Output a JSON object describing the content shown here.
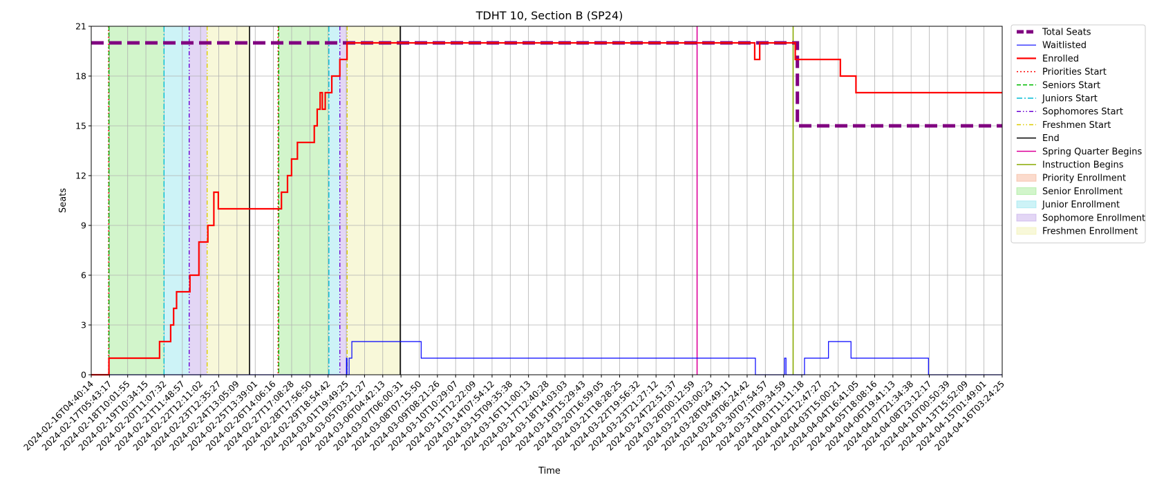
{
  "chart_data": {
    "type": "line",
    "title": "TDHT 10, Section B (SP24)",
    "xlabel": "Time",
    "ylabel": "Seats",
    "xlim": [
      "2024-02-16T04:40:14",
      "2024-04-16T03:24:25"
    ],
    "ylim": [
      0,
      21
    ],
    "y_ticks": [
      0,
      3,
      6,
      9,
      12,
      15,
      18,
      21
    ],
    "x_ticks": [
      "2024-02-16T04:40:14",
      "2024-02-17T05:43:17",
      "2024-02-18T10:01:55",
      "2024-02-19T10:34:15",
      "2024-02-20T11:07:32",
      "2024-02-21T11:48:57",
      "2024-02-22T12:11:02",
      "2024-02-23T12:35:27",
      "2024-02-24T13:05:09",
      "2024-02-25T13:39:01",
      "2024-02-26T14:06:16",
      "2024-02-27T17:08:28",
      "2024-02-28T17:56:50",
      "2024-02-29T18:54:42",
      "2024-03-01T19:49:25",
      "2024-03-05T03:21:27",
      "2024-03-06T04:42:13",
      "2024-03-07T06:00:31",
      "2024-03-08T07:15:50",
      "2024-03-09T08:21:26",
      "2024-03-10T10:29:07",
      "2024-03-11T12:22:09",
      "2024-03-14T07:54:12",
      "2024-03-15T09:35:38",
      "2024-03-16T11:00:13",
      "2024-03-17T12:40:28",
      "2024-03-18T14:03:03",
      "2024-03-19T15:29:43",
      "2024-03-20T16:59:05",
      "2024-03-21T18:28:25",
      "2024-03-22T19:56:32",
      "2024-03-23T21:27:12",
      "2024-03-24T22:51:37",
      "2024-03-26T00:12:59",
      "2024-03-27T03:00:23",
      "2024-03-28T04:49:11",
      "2024-03-29T06:24:42",
      "2024-03-30T07:54:57",
      "2024-03-31T09:34:59",
      "2024-04-01T11:11:18",
      "2024-04-02T12:47:27",
      "2024-04-03T15:00:21",
      "2024-04-04T16:41:05",
      "2024-04-05T18:08:16",
      "2024-04-06T19:41:13",
      "2024-04-07T21:34:38",
      "2024-04-08T23:12:17",
      "2024-04-10T00:50:39",
      "2024-04-13T15:52:09",
      "2024-04-15T01:49:01",
      "2024-04-16T03:24:25"
    ],
    "grid": true,
    "legend_placement": "outside-right",
    "series": [
      {
        "name": "Total Seats",
        "color": "#800080",
        "style": "dashed-thick",
        "points": [
          [
            "2024-02-16T04:40:14",
            20
          ],
          [
            "2024-03-27T17:00:00",
            20
          ],
          [
            "2024-03-28T04:00:00",
            20
          ],
          [
            "2024-03-29T18:00:00",
            20
          ],
          [
            "2024-03-31T00:00:00",
            20
          ],
          [
            "2024-04-01T05:00:00",
            20
          ],
          [
            "2024-04-01T05:00:00",
            15
          ],
          [
            "2024-04-16T03:24:25",
            15
          ]
        ]
      },
      {
        "name": "Waitlisted",
        "color": "#0000ff",
        "style": "solid-thin",
        "points": [
          [
            "2024-02-16T04:40:14",
            0
          ],
          [
            "2024-03-01T20:30:00",
            0
          ],
          [
            "2024-03-01T20:30:00",
            1
          ],
          [
            "2024-03-01T23:00:00",
            1
          ],
          [
            "2024-03-01T23:00:00",
            0
          ],
          [
            "2024-03-02T08:00:00",
            0
          ],
          [
            "2024-03-02T08:00:00",
            1
          ],
          [
            "2024-03-02T20:00:00",
            1
          ],
          [
            "2024-03-02T20:00:00",
            2
          ],
          [
            "2024-03-08T10:00:00",
            2
          ],
          [
            "2024-03-08T10:00:00",
            1
          ],
          [
            "2024-03-29T18:00:00",
            1
          ],
          [
            "2024-03-29T18:00:00",
            0
          ],
          [
            "2024-03-31T11:00:00",
            0
          ],
          [
            "2024-03-31T11:00:00",
            1
          ],
          [
            "2024-03-31T13:00:00",
            1
          ],
          [
            "2024-03-31T13:00:00",
            0
          ],
          [
            "2024-04-01T15:00:00",
            0
          ],
          [
            "2024-04-01T15:00:00",
            1
          ],
          [
            "2024-04-03T01:00:00",
            1
          ],
          [
            "2024-04-03T01:00:00",
            2
          ],
          [
            "2024-04-04T09:00:00",
            2
          ],
          [
            "2024-04-04T09:00:00",
            1
          ],
          [
            "2024-04-08T22:00:00",
            1
          ],
          [
            "2024-04-08T22:00:00",
            0
          ],
          [
            "2024-04-16T03:24:25",
            0
          ]
        ]
      },
      {
        "name": "Enrolled",
        "color": "#ff0000",
        "style": "solid-thick",
        "points": [
          [
            "2024-02-16T04:40:14",
            0
          ],
          [
            "2024-02-17T05:00:00",
            0
          ],
          [
            "2024-02-17T05:00:00",
            1
          ],
          [
            "2024-02-20T05:00:00",
            1
          ],
          [
            "2024-02-20T05:00:00",
            2
          ],
          [
            "2024-02-20T20:00:00",
            2
          ],
          [
            "2024-02-20T20:00:00",
            3
          ],
          [
            "2024-02-21T00:00:00",
            3
          ],
          [
            "2024-02-21T00:00:00",
            4
          ],
          [
            "2024-02-21T04:00:00",
            4
          ],
          [
            "2024-02-21T04:00:00",
            5
          ],
          [
            "2024-02-21T22:00:00",
            5
          ],
          [
            "2024-02-21T22:00:00",
            6
          ],
          [
            "2024-02-22T10:00:00",
            6
          ],
          [
            "2024-02-22T10:00:00",
            8
          ],
          [
            "2024-02-22T22:00:00",
            8
          ],
          [
            "2024-02-22T22:00:00",
            9
          ],
          [
            "2024-02-23T06:00:00",
            9
          ],
          [
            "2024-02-23T06:00:00",
            11
          ],
          [
            "2024-02-23T12:00:00",
            11
          ],
          [
            "2024-02-23T12:00:00",
            10
          ],
          [
            "2024-02-27T02:00:00",
            10
          ],
          [
            "2024-02-27T02:00:00",
            11
          ],
          [
            "2024-02-27T11:00:00",
            11
          ],
          [
            "2024-02-27T11:00:00",
            12
          ],
          [
            "2024-02-27T17:00:00",
            12
          ],
          [
            "2024-02-27T17:00:00",
            13
          ],
          [
            "2024-02-28T01:00:00",
            13
          ],
          [
            "2024-02-28T01:00:00",
            14
          ],
          [
            "2024-02-29T00:00:00",
            14
          ],
          [
            "2024-02-29T00:00:00",
            15
          ],
          [
            "2024-02-29T04:00:00",
            15
          ],
          [
            "2024-02-29T04:00:00",
            16
          ],
          [
            "2024-02-29T08:00:00",
            16
          ],
          [
            "2024-02-29T08:00:00",
            17
          ],
          [
            "2024-02-29T11:00:00",
            17
          ],
          [
            "2024-02-29T11:00:00",
            16
          ],
          [
            "2024-02-29T15:00:00",
            16
          ],
          [
            "2024-02-29T15:00:00",
            17
          ],
          [
            "2024-03-01T00:00:00",
            17
          ],
          [
            "2024-03-01T00:00:00",
            18
          ],
          [
            "2024-03-01T11:00:00",
            18
          ],
          [
            "2024-03-01T11:00:00",
            19
          ],
          [
            "2024-03-01T23:00:00",
            19
          ],
          [
            "2024-03-01T23:00:00",
            20
          ],
          [
            "2024-03-29T17:00:00",
            20
          ],
          [
            "2024-03-29T17:00:00",
            19
          ],
          [
            "2024-03-30T00:00:00",
            19
          ],
          [
            "2024-03-30T00:00:00",
            20
          ],
          [
            "2024-04-01T02:00:00",
            20
          ],
          [
            "2024-04-01T02:00:00",
            19
          ],
          [
            "2024-04-03T18:00:00",
            19
          ],
          [
            "2024-04-03T18:00:00",
            18
          ],
          [
            "2024-04-04T16:00:00",
            18
          ],
          [
            "2024-04-04T16:00:00",
            17
          ],
          [
            "2024-04-16T03:24:25",
            17
          ]
        ]
      }
    ],
    "markers": [
      {
        "name": "Priorities Start",
        "color": "#ff0000",
        "style": "dotted",
        "x": [
          "2024-02-17T04:30:00",
          "2024-02-26T21:00:00"
        ]
      },
      {
        "name": "Seniors Start",
        "color": "#00bb00",
        "style": "dashed",
        "x": [
          "2024-02-17T05:00:00",
          "2024-02-26T22:00:00"
        ]
      },
      {
        "name": "Juniors Start",
        "color": "#00bcd4",
        "style": "dashdot",
        "x": [
          "2024-02-20T11:00:00",
          "2024-02-29T20:00:00"
        ]
      },
      {
        "name": "Sophomores Start",
        "color": "#6a00d4",
        "style": "dashdotdot",
        "x": [
          "2024-02-21T21:00:00",
          "2024-03-01T11:00:00"
        ]
      },
      {
        "name": "Freshmen Start",
        "color": "#ddcc00",
        "style": "dashdotdot",
        "x": [
          "2024-02-22T21:00:00",
          "2024-03-01T23:30:00"
        ]
      },
      {
        "name": "End",
        "color": "#000000",
        "style": "solid",
        "x": [
          "2024-02-25T06:00:00",
          "2024-03-07T05:00:00"
        ]
      },
      {
        "name": "Spring Quarter Begins",
        "color": "#dd0099",
        "style": "solid",
        "x": [
          "2024-03-26T07:00:00"
        ]
      },
      {
        "name": "Instruction Begins",
        "color": "#88aa00",
        "style": "solid",
        "x": [
          "2024-03-31T23:00:00"
        ]
      }
    ],
    "spans": [
      {
        "name": "Priority Enrollment",
        "color": "#f4a582",
        "ranges": [
          [
            "2024-02-17T04:30:00",
            "2024-02-17T05:00:00"
          ],
          [
            "2024-02-26T21:00:00",
            "2024-02-26T22:00:00"
          ]
        ]
      },
      {
        "name": "Senior Enrollment",
        "color": "#8ee67e",
        "ranges": [
          [
            "2024-02-17T05:00:00",
            "2024-02-20T11:00:00"
          ],
          [
            "2024-02-26T22:00:00",
            "2024-02-29T20:00:00"
          ]
        ]
      },
      {
        "name": "Junior Enrollment",
        "color": "#82e2ec",
        "ranges": [
          [
            "2024-02-20T11:00:00",
            "2024-02-21T21:00:00"
          ],
          [
            "2024-02-29T20:00:00",
            "2024-03-01T11:00:00"
          ]
        ]
      },
      {
        "name": "Sophomore Enrollment",
        "color": "#b899e6",
        "ranges": [
          [
            "2024-02-21T21:00:00",
            "2024-02-22T21:00:00"
          ],
          [
            "2024-03-01T11:00:00",
            "2024-03-01T23:30:00"
          ]
        ]
      },
      {
        "name": "Freshmen Enrollment",
        "color": "#eeeea0",
        "ranges": [
          [
            "2024-02-22T21:00:00",
            "2024-02-25T06:00:00"
          ],
          [
            "2024-03-01T23:30:00",
            "2024-03-07T05:00:00"
          ]
        ]
      }
    ],
    "legend": [
      "Total Seats",
      "Waitlisted",
      "Enrolled",
      "Priorities Start",
      "Seniors Start",
      "Juniors Start",
      "Sophomores Start",
      "Freshmen Start",
      "End",
      "Spring Quarter Begins",
      "Instruction Begins",
      "Priority Enrollment",
      "Senior Enrollment",
      "Junior Enrollment",
      "Sophomore Enrollment",
      "Freshmen Enrollment"
    ]
  }
}
